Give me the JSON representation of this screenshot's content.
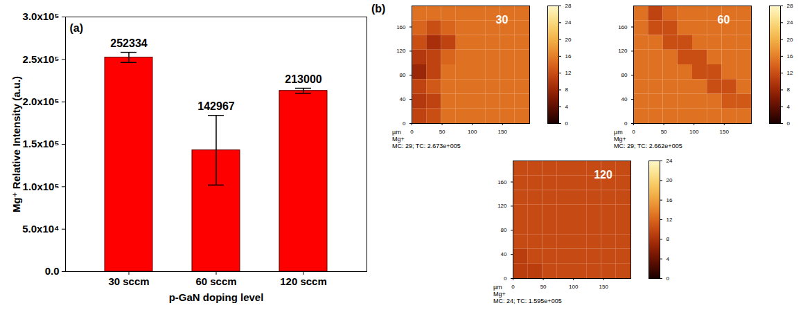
{
  "chart_data": [
    {
      "type": "bar",
      "annotations": [
        "(a)"
      ],
      "xlabel": "p-GaN doping level",
      "ylabel": "Mg⁺ Relative Intensity (a.u.)",
      "categories": [
        "30 sccm",
        "60 sccm",
        "120 sccm"
      ],
      "values": [
        252334,
        142967,
        213000
      ],
      "errors": [
        6000,
        41000,
        3000
      ],
      "color": "#ff0000",
      "ylim": [
        0,
        300000
      ],
      "yticks": [
        {
          "value": 0,
          "label": "0.0"
        },
        {
          "value": 50000,
          "label": "5.0x10⁴"
        },
        {
          "value": 100000,
          "label": "1.0x10⁵"
        },
        {
          "value": 150000,
          "label": "1.5x10⁵"
        },
        {
          "value": 200000,
          "label": "2.0x10⁵"
        },
        {
          "value": 250000,
          "label": "2.5x10⁵"
        },
        {
          "value": 300000,
          "label": "3.0x10⁵"
        }
      ],
      "grid": false,
      "data_labels": true
    },
    {
      "type": "heatmap",
      "annotations": [
        "(b)"
      ],
      "label": "30",
      "xlabel": "µm",
      "caption": [
        "Mg+",
        "MC: 29; TC: 2.673e+005"
      ],
      "xlim": [
        0,
        195
      ],
      "xticks": [
        0,
        50,
        100,
        150
      ],
      "ylim": [
        0,
        195
      ],
      "yticks": [
        0,
        40,
        80,
        120,
        160
      ],
      "cells": [
        [
          15,
          15,
          15,
          15,
          15,
          15,
          15,
          15
        ],
        [
          14,
          12,
          14,
          15,
          15,
          15,
          15,
          15
        ],
        [
          12,
          9,
          11,
          15,
          15,
          15,
          15,
          15
        ],
        [
          10,
          11,
          14,
          15,
          15,
          15,
          15,
          15
        ],
        [
          8,
          11,
          15,
          15,
          15,
          15,
          15,
          15
        ],
        [
          11,
          13,
          15,
          15,
          15,
          15,
          15,
          15
        ],
        [
          10,
          11,
          15,
          15,
          15,
          15,
          15,
          15
        ],
        [
          11,
          12,
          15,
          15,
          15,
          15,
          15,
          15
        ]
      ],
      "colorbar_range": [
        0,
        28
      ],
      "colorbar_ticks": [
        0,
        4,
        8,
        12,
        16,
        20,
        24,
        28
      ]
    },
    {
      "type": "heatmap",
      "label": "60",
      "xlabel": "µm",
      "caption": [
        "Mg+",
        "MC: 29; TC: 2.662e+005"
      ],
      "xlim": [
        0,
        195
      ],
      "xticks": [
        0,
        50,
        100,
        150
      ],
      "ylim": [
        0,
        195
      ],
      "yticks": [
        0,
        40,
        80,
        120,
        160
      ],
      "cells": [
        [
          15,
          11,
          14,
          15,
          15,
          15,
          15,
          15
        ],
        [
          15,
          12,
          12,
          15,
          15,
          15,
          15,
          15
        ],
        [
          15,
          15,
          12,
          12,
          15,
          15,
          15,
          15
        ],
        [
          15,
          15,
          15,
          12,
          12,
          15,
          15,
          15
        ],
        [
          15,
          15,
          15,
          15,
          12,
          12,
          15,
          15
        ],
        [
          15,
          15,
          15,
          15,
          15,
          12,
          12,
          15
        ],
        [
          15,
          15,
          15,
          15,
          15,
          15,
          13,
          13
        ],
        [
          15,
          15,
          15,
          15,
          15,
          15,
          15,
          15
        ]
      ],
      "colorbar_range": [
        0,
        28
      ],
      "colorbar_ticks": [
        0,
        4,
        8,
        12,
        16,
        20,
        24,
        28
      ]
    },
    {
      "type": "heatmap",
      "label": "120",
      "xlabel": "µm",
      "caption": [
        "Mg+",
        "MC: 24; TC: 1.595e+005"
      ],
      "xlim": [
        0,
        195
      ],
      "xticks": [
        0,
        50,
        100,
        150
      ],
      "ylim": [
        0,
        195
      ],
      "yticks": [
        0,
        40,
        80,
        120,
        160
      ],
      "cells": [
        [
          10,
          10,
          10,
          10,
          10,
          10,
          10,
          10
        ],
        [
          10,
          10,
          10,
          10,
          10,
          10,
          10,
          10
        ],
        [
          10,
          10,
          10,
          10,
          10,
          10,
          10,
          10
        ],
        [
          10,
          10,
          10,
          10,
          10,
          10,
          10,
          10
        ],
        [
          10,
          10,
          10,
          10,
          10,
          10,
          10,
          10
        ],
        [
          10,
          10,
          10,
          10,
          10,
          10,
          10,
          10
        ],
        [
          9,
          10,
          10,
          10,
          10,
          10,
          10,
          10
        ],
        [
          9,
          9,
          10,
          10,
          10,
          10,
          10,
          10
        ]
      ],
      "colorbar_range": [
        0,
        24
      ],
      "colorbar_ticks": [
        0,
        4,
        8,
        12,
        16,
        20,
        24
      ]
    }
  ]
}
